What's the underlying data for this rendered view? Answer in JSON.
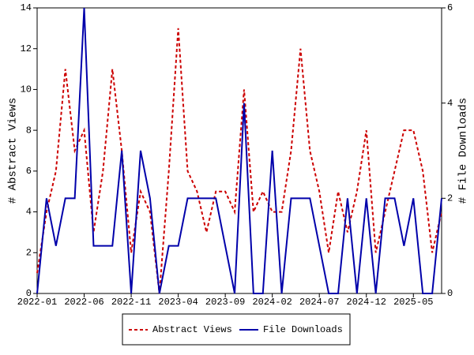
{
  "chart_data": {
    "type": "line",
    "categories": [
      "2022-01",
      null,
      null,
      null,
      null,
      "2022-06",
      null,
      null,
      null,
      null,
      "2022-11",
      null,
      null,
      null,
      null,
      "2023-04",
      null,
      null,
      null,
      null,
      "2023-09",
      null,
      null,
      null,
      null,
      "2024-02",
      null,
      null,
      null,
      null,
      "2024-07",
      null,
      null,
      null,
      null,
      "2024-12",
      null,
      null,
      null,
      null,
      "2025-05",
      null,
      null,
      null
    ],
    "ylabel": "# Abstract Views",
    "y2label": "# File Downloads",
    "ylim": [
      0,
      14
    ],
    "yticks": [
      0,
      2,
      4,
      6,
      8,
      10,
      12,
      14
    ],
    "y2lim": [
      0,
      6
    ],
    "y2ticks": [
      0,
      2,
      4,
      6
    ],
    "legend": "bottom",
    "series": [
      {
        "name": "Abstract Views",
        "color": "#cc0000",
        "style": "dashed",
        "values": [
          1,
          4,
          6,
          11,
          7,
          8,
          3,
          6,
          11,
          7,
          2,
          5,
          4,
          0,
          6,
          13,
          6,
          5,
          3,
          5,
          5,
          4,
          10,
          4,
          5,
          4,
          4,
          7,
          12,
          7,
          5,
          2,
          5,
          3,
          5,
          8,
          2,
          4,
          6,
          8,
          8,
          6,
          2,
          4
        ]
      },
      {
        "name": "File Downloads",
        "color": "#0000aa",
        "style": "solid",
        "axis": "y2",
        "values": [
          0,
          2,
          1,
          2,
          2,
          6,
          1,
          1,
          1,
          3,
          0,
          3,
          2,
          0,
          1,
          1,
          2,
          2,
          2,
          2,
          1,
          0,
          4,
          0,
          0,
          3,
          0,
          2,
          2,
          2,
          1,
          0,
          0,
          2,
          0,
          2,
          0,
          2,
          2,
          1,
          2,
          0,
          0,
          2
        ]
      }
    ]
  }
}
